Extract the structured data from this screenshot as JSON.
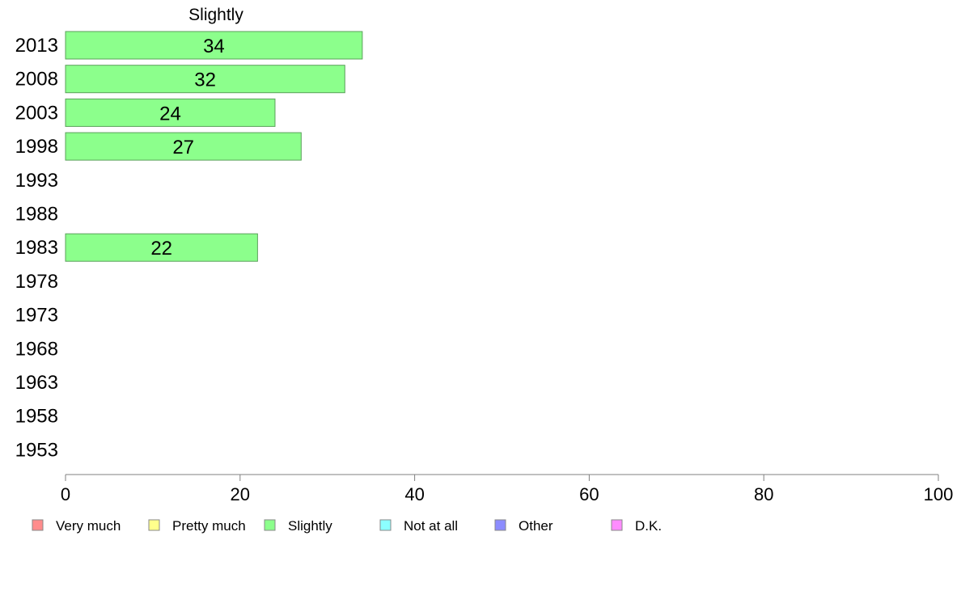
{
  "chart_data": {
    "type": "bar",
    "orientation": "horizontal",
    "title": "Slightly",
    "categories": [
      "2013",
      "2008",
      "2003",
      "1998",
      "1993",
      "1988",
      "1983",
      "1978",
      "1973",
      "1968",
      "1963",
      "1958",
      "1953"
    ],
    "series": [
      {
        "name": "Slightly",
        "color": "#8cff8c",
        "values": [
          34,
          32,
          24,
          27,
          null,
          null,
          22,
          null,
          null,
          null,
          null,
          null,
          null
        ],
        "value_labels": [
          "34",
          "32",
          "24",
          "27",
          "",
          "",
          "22",
          "",
          "",
          "",
          "",
          "",
          ""
        ]
      }
    ],
    "xlim": [
      0,
      100
    ],
    "xticks": [
      0,
      20,
      40,
      60,
      80,
      100
    ],
    "xtick_labels": [
      "0",
      "20",
      "40",
      "60",
      "80",
      "100"
    ],
    "grid": false,
    "legend_position": "bottom",
    "legend": [
      {
        "label": "Very much",
        "color": "#ff8c8c"
      },
      {
        "label": "Pretty much",
        "color": "#ffff8c"
      },
      {
        "label": "Slightly",
        "color": "#8cff8c"
      },
      {
        "label": "Not at all",
        "color": "#8cffff"
      },
      {
        "label": "Other",
        "color": "#8c8cff"
      },
      {
        "label": "D.K.",
        "color": "#ff8cff"
      }
    ]
  }
}
